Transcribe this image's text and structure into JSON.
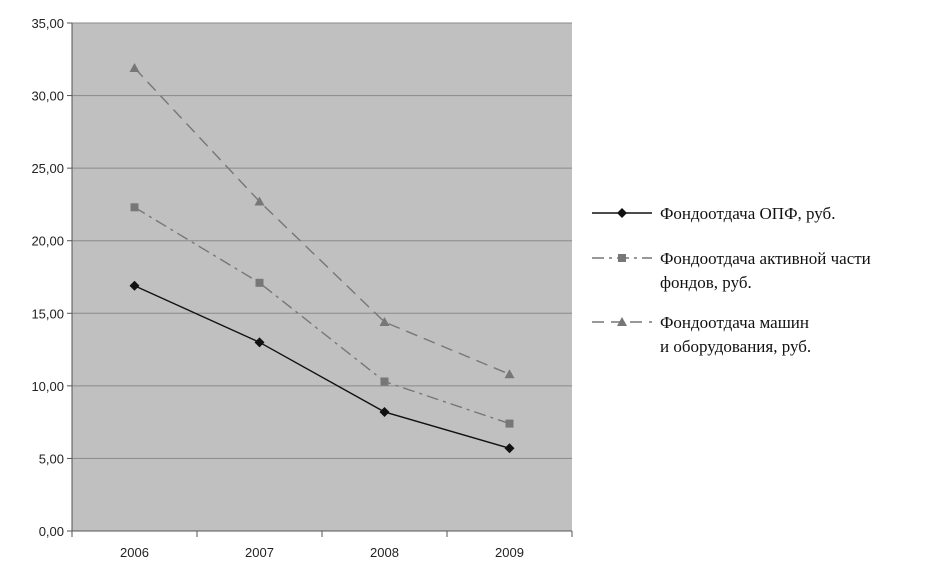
{
  "chart_data": {
    "type": "line",
    "categories": [
      "2006",
      "2007",
      "2008",
      "2009"
    ],
    "ylim": [
      0,
      35
    ],
    "y_ticks": [
      "0,00",
      "5,00",
      "10,00",
      "15,00",
      "20,00",
      "25,00",
      "30,00",
      "35,00"
    ],
    "grid": true,
    "plot_background": "#c0c0c0",
    "legend_position": "right",
    "series": [
      {
        "name": "Фондоотдача ОПФ, руб.",
        "legend_lines": [
          "Фондоотдача ОПФ, руб."
        ],
        "values": [
          16.9,
          13.0,
          8.2,
          5.7
        ],
        "marker": "diamond",
        "dash": "solid",
        "color": "#111111"
      },
      {
        "name": "Фондоотдача активной части фондов, руб.",
        "legend_lines": [
          "Фондоотдача активной части",
          "фондов, руб."
        ],
        "values": [
          22.3,
          17.1,
          10.3,
          7.4
        ],
        "marker": "square",
        "dash": "dash-dot",
        "color": "#777777"
      },
      {
        "name": "Фондоотдача машин и оборудования, руб.",
        "legend_lines": [
          "Фондоотдача машин",
          "и оборудования, руб."
        ],
        "values": [
          31.9,
          22.7,
          14.4,
          10.8
        ],
        "marker": "triangle",
        "dash": "dashed",
        "color": "#777777"
      }
    ]
  }
}
